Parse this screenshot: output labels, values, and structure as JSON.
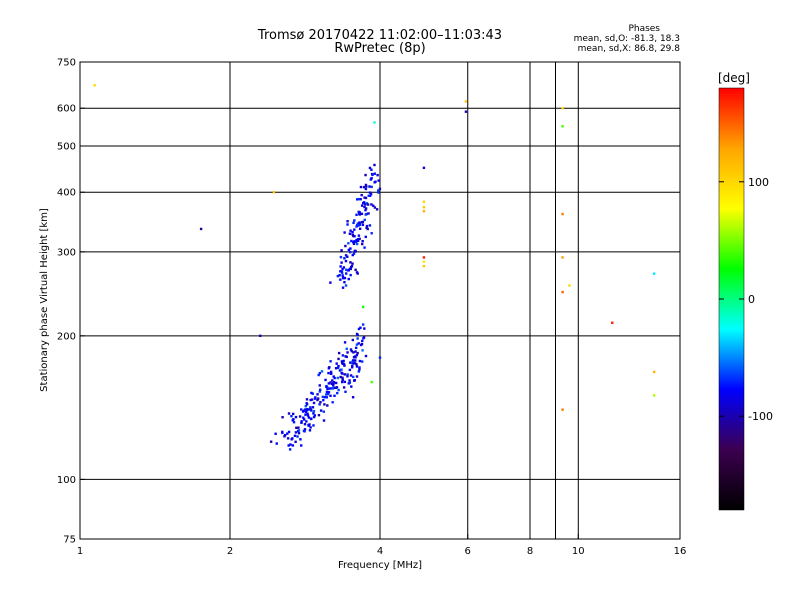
{
  "header": {
    "title_line1": "Tromsø 20170422 11:02:00–11:03:43",
    "title_line2": "RwPretec (8p)",
    "stats_title": "Phases",
    "stats_line1": "mean, sd,O:  -81.3, 18.3",
    "stats_line2": "mean, sd,X:  86.8, 29.8"
  },
  "colorbar": {
    "unit_label": "[deg]",
    "ticks": [
      {
        "label": "100",
        "value": 100
      },
      {
        "label": "0",
        "value": 0
      },
      {
        "label": "-100",
        "value": -100
      }
    ],
    "range": [
      -180,
      180
    ],
    "colors": [
      "#000000",
      "#3c0050",
      "#0000ff",
      "#00ffff",
      "#00ff00",
      "#ffff00",
      "#ffa500",
      "#ff0000"
    ]
  },
  "chart_data": {
    "type": "scatter",
    "title": "Tromsø 20170422 11:02:00–11:03:43",
    "subtitle": "RwPretec (8p)",
    "xlabel": "Frequency [MHz]",
    "ylabel": "Stationary phase Virtual Height [km]",
    "x_scale": "log",
    "y_scale": "log",
    "xlim": [
      1,
      16
    ],
    "ylim": [
      75,
      750
    ],
    "grid": true,
    "x_ticks": [
      {
        "label": "1",
        "value": 1
      },
      {
        "label": "2",
        "value": 2
      },
      {
        "label": "4",
        "value": 4
      },
      {
        "label": "6",
        "value": 6
      },
      {
        "label": "8",
        "value": 8
      },
      {
        "label": "10",
        "value": 10
      },
      {
        "label": "16",
        "value": 16
      }
    ],
    "x_grid": [
      2,
      4,
      6,
      8,
      9,
      10
    ],
    "y_ticks": [
      {
        "label": "750",
        "value": 750
      },
      {
        "label": "600",
        "value": 600
      },
      {
        "label": "500",
        "value": 500
      },
      {
        "label": "400",
        "value": 400
      },
      {
        "label": "300",
        "value": 300
      },
      {
        "label": "200",
        "value": 200
      },
      {
        "label": "100",
        "value": 100
      },
      {
        "label": "75",
        "value": 75
      }
    ],
    "y_grid": [
      600,
      500,
      400,
      300,
      200,
      100
    ],
    "scattered_points": [
      {
        "f": 1.07,
        "h": 670,
        "phase": 100
      },
      {
        "f": 1.75,
        "h": 335,
        "phase": -110
      },
      {
        "f": 2.3,
        "h": 200,
        "phase": -100
      },
      {
        "f": 2.45,
        "h": 400,
        "phase": 110
      },
      {
        "f": 2.55,
        "h": 135,
        "phase": -100
      },
      {
        "f": 3.9,
        "h": 560,
        "phase": -20
      },
      {
        "f": 4.0,
        "h": 180,
        "phase": -70
      },
      {
        "f": 3.85,
        "h": 160,
        "phase": 40
      },
      {
        "f": 3.7,
        "h": 230,
        "phase": 30
      },
      {
        "f": 4.9,
        "h": 450,
        "phase": -90
      },
      {
        "f": 4.9,
        "h": 382,
        "phase": 100
      },
      {
        "f": 4.9,
        "h": 372,
        "phase": 110
      },
      {
        "f": 4.9,
        "h": 365,
        "phase": 120
      },
      {
        "f": 4.9,
        "h": 292,
        "phase": 170
      },
      {
        "f": 4.9,
        "h": 286,
        "phase": 90
      },
      {
        "f": 4.9,
        "h": 280,
        "phase": 110
      },
      {
        "f": 5.95,
        "h": 620,
        "phase": 110
      },
      {
        "f": 5.95,
        "h": 590,
        "phase": -100
      },
      {
        "f": 9.3,
        "h": 600,
        "phase": 100
      },
      {
        "f": 9.3,
        "h": 550,
        "phase": 40
      },
      {
        "f": 9.3,
        "h": 360,
        "phase": 140
      },
      {
        "f": 9.3,
        "h": 292,
        "phase": 130
      },
      {
        "f": 9.3,
        "h": 247,
        "phase": 150
      },
      {
        "f": 9.3,
        "h": 140,
        "phase": 140
      },
      {
        "f": 9.6,
        "h": 255,
        "phase": 100
      },
      {
        "f": 11.7,
        "h": 213,
        "phase": 170
      },
      {
        "f": 14.2,
        "h": 270,
        "phase": -30
      },
      {
        "f": 14.2,
        "h": 168,
        "phase": 120
      },
      {
        "f": 14.2,
        "h": 150,
        "phase": 60
      }
    ],
    "clusters": [
      {
        "name": "",
        "f_start": 3.35,
        "h_start": 255,
        "f_end": 3.92,
        "h_end": 450,
        "f_spread": 0.09,
        "h_spread": 0.05,
        "count": 150,
        "phase_mean": -81.3,
        "phase_sd": 18.3
      },
      {
        "name": "",
        "f_start": 2.6,
        "h_start": 118,
        "f_end": 3.55,
        "h_end": 185,
        "f_spread": 0.11,
        "h_spread": 0.1,
        "count": 190,
        "phase_mean": -81.3,
        "phase_sd": 18.3
      },
      {
        "name": "",
        "f_start": 3.45,
        "h_start": 150,
        "f_end": 3.7,
        "h_end": 210,
        "f_spread": 0.06,
        "h_spread": 0.05,
        "count": 40,
        "phase_mean": -81.3,
        "phase_sd": 18.3
      }
    ]
  }
}
